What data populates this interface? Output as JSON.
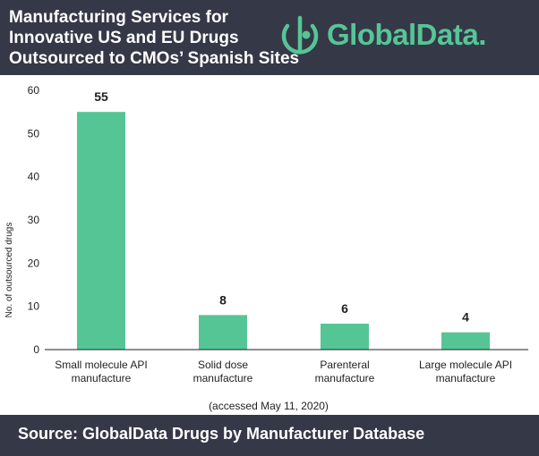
{
  "header": {
    "title_lines": [
      "Manufacturing Services for",
      "Innovative US and EU Drugs",
      "Outsourced to CMOs’ Spanish Sites"
    ],
    "logo_text": "GlobalData."
  },
  "chart_data": {
    "type": "bar",
    "categories": [
      [
        "Small molecule API",
        "manufacture"
      ],
      [
        "Solid dose",
        "manufacture"
      ],
      [
        "Parenteral",
        "manufacture"
      ],
      [
        "Large molecule API",
        "manufacture"
      ]
    ],
    "values": [
      55,
      8,
      6,
      4
    ],
    "ylabel": "No. of outsourced drugs",
    "ylim": [
      0,
      60
    ],
    "yticks": [
      0,
      10,
      20,
      30,
      40,
      50,
      60
    ],
    "grid": false,
    "note": "(accessed May 11, 2020)"
  },
  "footer": {
    "source": "Source: GlobalData Drugs by Manufacturer Database"
  },
  "colors": {
    "bar": "#56c596",
    "header_bg": "#353847",
    "logo": "#56c596"
  }
}
